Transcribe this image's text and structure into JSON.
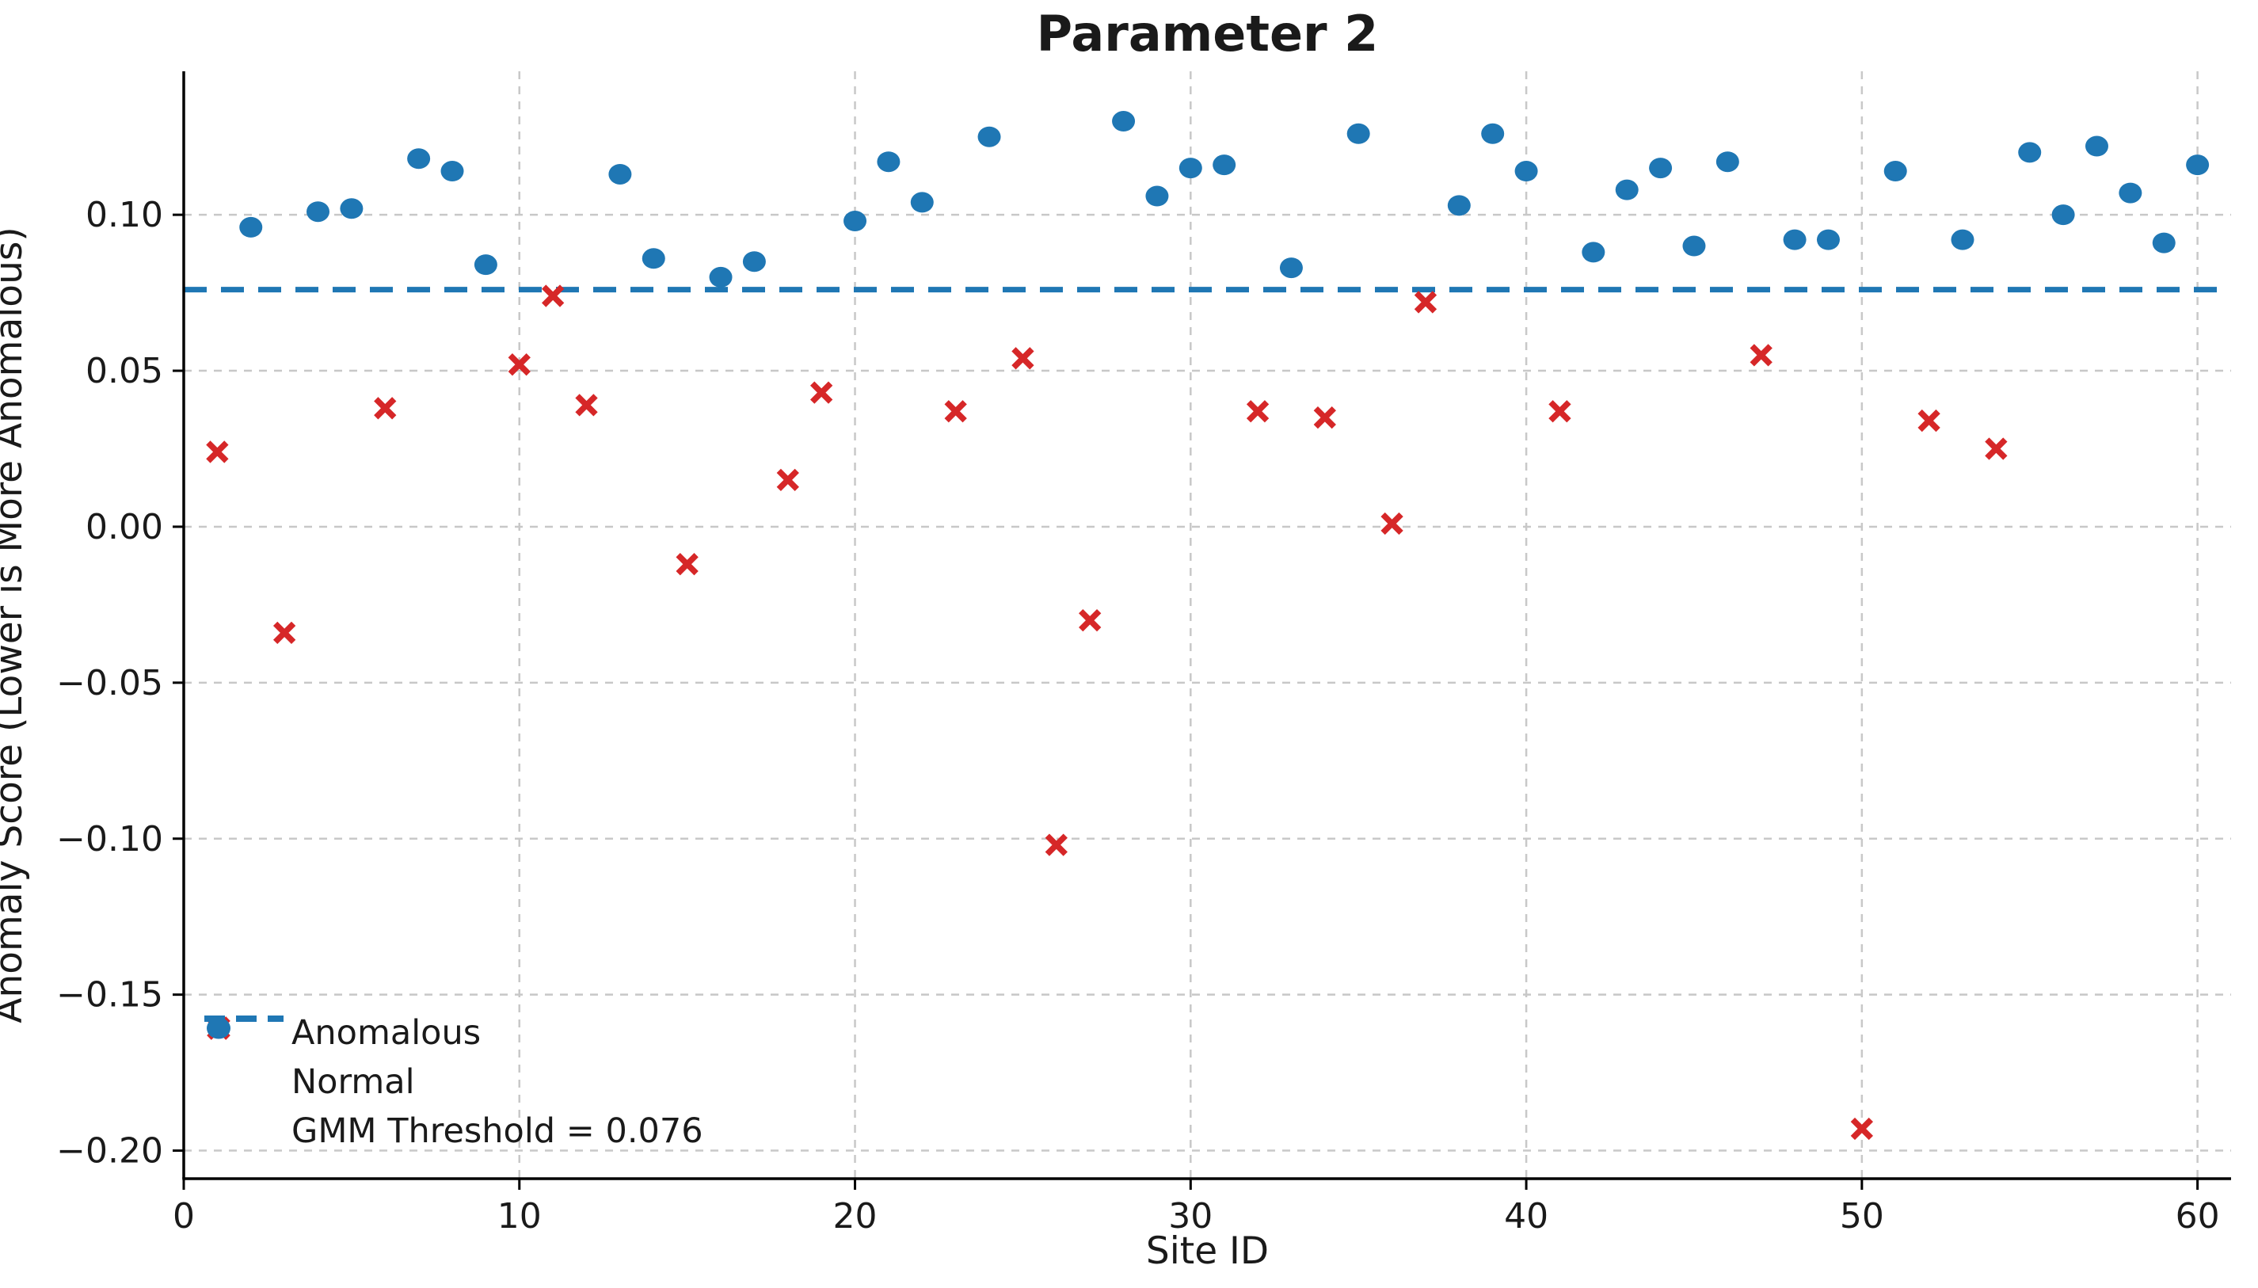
{
  "title": "Parameter 2",
  "axes": {
    "xlabel": "Site ID",
    "ylabel": "Anomaly Score (Lower is More Anomalous)",
    "xticks": [
      0,
      10,
      20,
      30,
      40,
      50,
      60
    ],
    "xtick_labels": [
      "0",
      "10",
      "20",
      "30",
      "40",
      "50",
      "60"
    ],
    "yticks": [
      0.1,
      0.05,
      0.0,
      -0.05,
      -0.1,
      -0.15,
      -0.2
    ],
    "ytick_labels": [
      "0.10",
      "0.05",
      "0.00",
      "−0.05",
      "−0.10",
      "−0.15",
      "−0.20"
    ],
    "xlim": [
      0,
      61
    ],
    "ylim": [
      -0.209,
      0.146
    ],
    "grid": true
  },
  "legend": {
    "position": "lower-left",
    "items": [
      {
        "label": "Anomalous",
        "marker": "x-marker",
        "color": "#d62728"
      },
      {
        "label": "Normal",
        "marker": "circle-marker",
        "color": "#1f77b4"
      },
      {
        "label": "GMM Threshold = 0.076",
        "marker": "dashed-line",
        "color": "#1f77b4"
      }
    ]
  },
  "colors": {
    "anomalous": "#d62728",
    "normal": "#1f77b4",
    "threshold_line": "#1f77b4",
    "gridline": "#c8c8c8",
    "spine": "#000000",
    "text": "#1a1a1a"
  },
  "chart_data": {
    "type": "scatter",
    "title": "Parameter 2",
    "xlabel": "Site ID",
    "ylabel": "Anomaly Score (Lower is More Anomalous)",
    "threshold": 0.076,
    "threshold_label": "GMM Threshold = 0.076",
    "xlim": [
      0,
      61
    ],
    "ylim": [
      -0.209,
      0.146
    ],
    "series": [
      {
        "name": "Anomalous",
        "marker": "x",
        "color": "#d62728",
        "points": [
          [
            1,
            0.024
          ],
          [
            3,
            -0.034
          ],
          [
            6,
            0.038
          ],
          [
            10,
            0.052
          ],
          [
            11,
            0.074
          ],
          [
            12,
            0.039
          ],
          [
            15,
            -0.012
          ],
          [
            18,
            0.015
          ],
          [
            19,
            0.043
          ],
          [
            23,
            0.037
          ],
          [
            25,
            0.054
          ],
          [
            26,
            -0.102
          ],
          [
            27,
            -0.03
          ],
          [
            32,
            0.037
          ],
          [
            34,
            0.035
          ],
          [
            36,
            0.001
          ],
          [
            37,
            0.072
          ],
          [
            41,
            0.037
          ],
          [
            47,
            0.055
          ],
          [
            50,
            -0.193
          ],
          [
            52,
            0.034
          ],
          [
            54,
            0.025
          ]
        ]
      },
      {
        "name": "Normal",
        "marker": "circle",
        "color": "#1f77b4",
        "points": [
          [
            2,
            0.096
          ],
          [
            4,
            0.101
          ],
          [
            5,
            0.102
          ],
          [
            7,
            0.118
          ],
          [
            8,
            0.114
          ],
          [
            9,
            0.084
          ],
          [
            13,
            0.113
          ],
          [
            14,
            0.086
          ],
          [
            16,
            0.08
          ],
          [
            17,
            0.085
          ],
          [
            20,
            0.098
          ],
          [
            21,
            0.117
          ],
          [
            22,
            0.104
          ],
          [
            24,
            0.125
          ],
          [
            28,
            0.13
          ],
          [
            29,
            0.106
          ],
          [
            30,
            0.115
          ],
          [
            31,
            0.116
          ],
          [
            33,
            0.083
          ],
          [
            35,
            0.126
          ],
          [
            38,
            0.103
          ],
          [
            39,
            0.126
          ],
          [
            40,
            0.114
          ],
          [
            42,
            0.088
          ],
          [
            43,
            0.108
          ],
          [
            44,
            0.115
          ],
          [
            45,
            0.09
          ],
          [
            46,
            0.117
          ],
          [
            48,
            0.092
          ],
          [
            49,
            0.092
          ],
          [
            51,
            0.114
          ],
          [
            53,
            0.092
          ],
          [
            55,
            0.12
          ],
          [
            56,
            0.1
          ],
          [
            57,
            0.122
          ],
          [
            58,
            0.107
          ],
          [
            59,
            0.091
          ],
          [
            60,
            0.116
          ]
        ]
      }
    ]
  }
}
